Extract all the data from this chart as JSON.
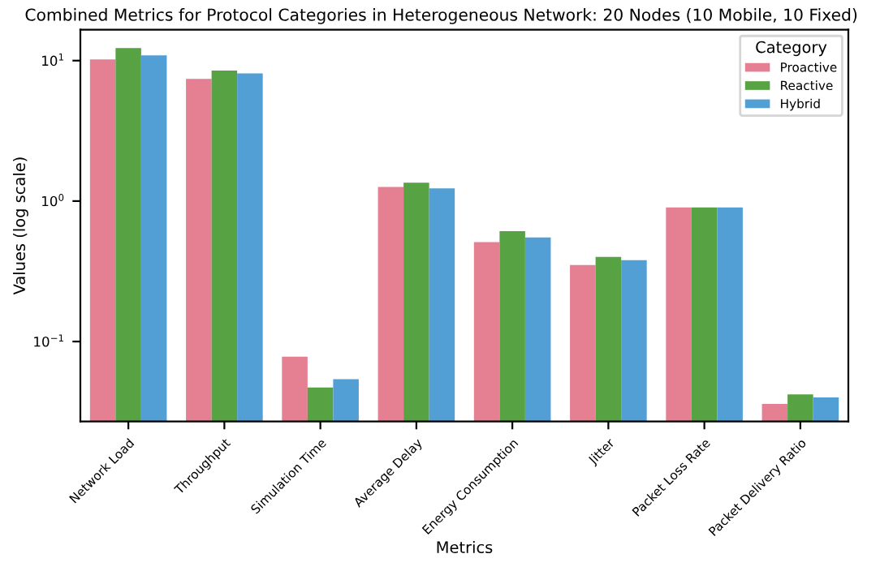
{
  "chart_data": {
    "type": "bar",
    "title": "Combined Metrics for Protocol Categories in Heterogeneous Network: 20 Nodes (10 Mobile, 10 Fixed)",
    "xlabel": "Metrics",
    "ylabel": "Values (log scale)",
    "legend_title": "Category",
    "categories": [
      "Network Load",
      "Throughput",
      "Simulation Time",
      "Average Delay",
      "Energy Consumption",
      "Jitter",
      "Packet Loss Rate",
      "Packet Delivery Ratio"
    ],
    "series": [
      {
        "name": "Proactive",
        "color": "#e57f92",
        "values": [
          10.2,
          7.4,
          0.078,
          1.26,
          0.51,
          0.35,
          0.9,
          0.036
        ]
      },
      {
        "name": "Reactive",
        "color": "#57a242",
        "values": [
          12.3,
          8.5,
          0.047,
          1.35,
          0.61,
          0.4,
          0.9,
          0.042
        ]
      },
      {
        "name": "Hybrid",
        "color": "#529fd6",
        "values": [
          10.9,
          8.1,
          0.054,
          1.23,
          0.55,
          0.38,
          0.9,
          0.04
        ]
      }
    ],
    "log": "y",
    "ylim": [
      0.027,
      16.6
    ],
    "yticks": [
      {
        "value": 0.1,
        "label": "10$^{−1}$"
      },
      {
        "value": 1,
        "label": "10$^{0}$"
      },
      {
        "value": 10,
        "label": "10$^{1}$"
      }
    ],
    "legend": "top right",
    "grid": false
  }
}
